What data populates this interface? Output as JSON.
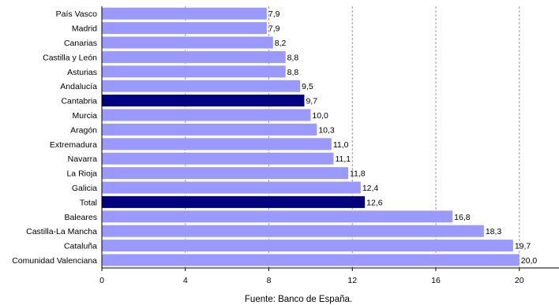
{
  "chart_data": {
    "type": "bar",
    "orientation": "horizontal",
    "categories": [
      "País Vasco",
      "Madrid",
      "Canarias",
      "Castilla y León",
      "Asturias",
      "Andalucía",
      "Cantabria",
      "Murcia",
      "Aragón",
      "Extremadura",
      "Navarra",
      "La Rioja",
      "Galicia",
      "Total",
      "Baleares",
      "Castilla-La Mancha",
      "Cataluña",
      "Comunidad Valenciana"
    ],
    "values": [
      7.9,
      7.9,
      8.2,
      8.8,
      8.8,
      9.5,
      9.7,
      10.0,
      10.3,
      11.0,
      11.1,
      11.8,
      12.4,
      12.6,
      16.8,
      18.3,
      19.7,
      20.0
    ],
    "value_labels": [
      "7,9",
      "7,9",
      "8,2",
      "8,8",
      "8,8",
      "9,5",
      "9,7",
      "10,0",
      "10,3",
      "11,0",
      "11,1",
      "11,8",
      "12,4",
      "12,6",
      "16,8",
      "18,3",
      "19,7",
      "20,0"
    ],
    "highlighted": [
      "Cantabria",
      "Total"
    ],
    "xticks": [
      0,
      4,
      8,
      12,
      16,
      20
    ],
    "xlim": [
      0,
      21.9
    ],
    "grid": true,
    "colors": {
      "bar": "#9999ff",
      "highlight": "#000080",
      "grid": "#999999",
      "axis": "#000000"
    }
  },
  "source": "Fuente: Banco de España."
}
